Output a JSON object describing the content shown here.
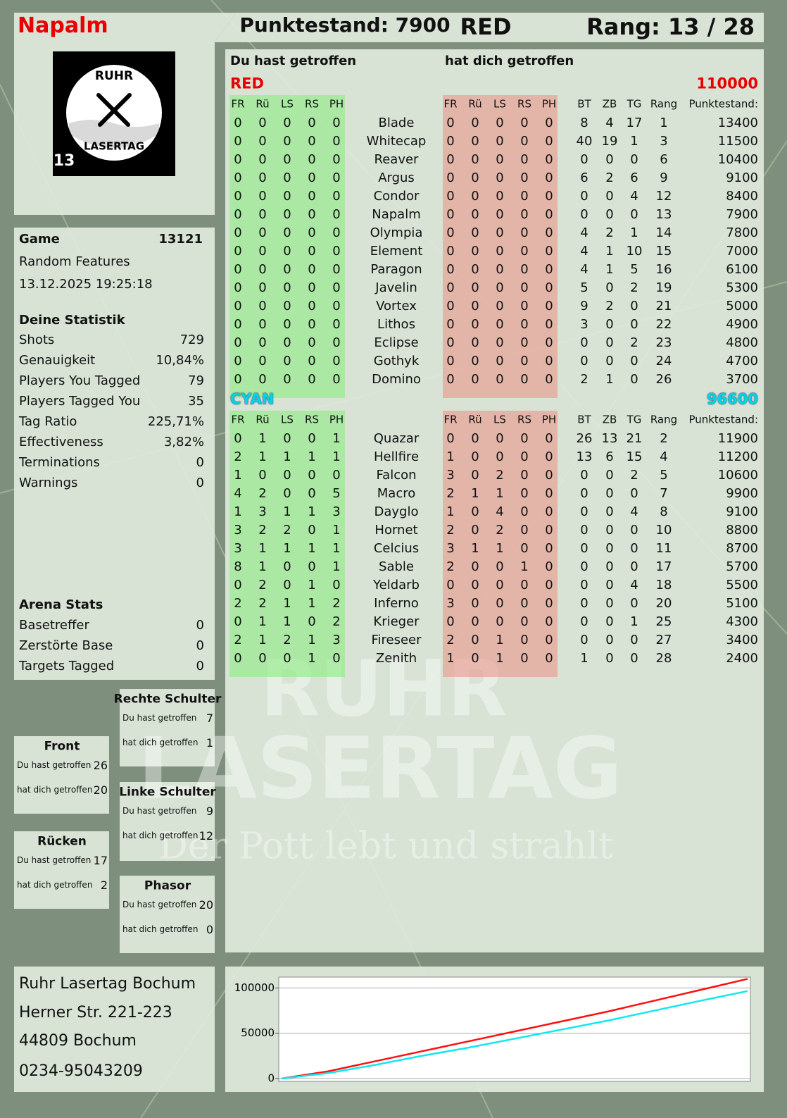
{
  "header": {
    "player": "Napalm",
    "score": "Punktestand: 7900",
    "team": "RED",
    "rank": "Rang: 13 / 28"
  },
  "logo": {
    "top": "RUHR",
    "bottom": "LASERTAG",
    "number": "13"
  },
  "game": {
    "label": "Game",
    "id": 13121,
    "mode": "Random Features",
    "date": "13.12.2025 19:25:18"
  },
  "statistics": {
    "title": "Deine Statistik",
    "rows": [
      [
        "Shots",
        729
      ],
      [
        "Genauigkeit",
        "10,84%"
      ],
      [
        "Players You Tagged",
        79
      ],
      [
        "Players Tagged You",
        35
      ],
      [
        "Tag Ratio",
        "225,71%"
      ],
      [
        "Effectiveness",
        "3,82%"
      ],
      [
        "Terminations",
        0
      ],
      [
        "Warnings",
        0
      ]
    ]
  },
  "arena": {
    "title": "Arena Stats",
    "rows": [
      [
        "Basetreffer",
        0
      ],
      [
        "Zerstörte Base",
        0
      ],
      [
        "Targets Tagged",
        0
      ]
    ]
  },
  "hit_zones": [
    {
      "name": "Rechte Schulter",
      "rows": [
        [
          "Du hast getroffen",
          7
        ],
        [
          "hat dich getroffen",
          1
        ]
      ]
    },
    {
      "name": "Front",
      "rows": [
        [
          "Du hast getroffen",
          26
        ],
        [
          "hat dich getroffen",
          20
        ]
      ]
    },
    {
      "name": "Linke Schulter",
      "rows": [
        [
          "Du hast getroffen",
          9
        ],
        [
          "hat dich getroffen",
          12
        ]
      ]
    },
    {
      "name": "Rücken",
      "rows": [
        [
          "Du hast getroffen",
          17
        ],
        [
          "hat dich getroffen",
          2
        ]
      ]
    },
    {
      "name": "Phasor",
      "rows": [
        [
          "Du hast getroffen",
          20
        ],
        [
          "hat dich getroffen",
          0
        ]
      ]
    }
  ],
  "address": [
    "Ruhr Lasertag Bochum",
    "Herner Str. 221-223",
    "44809 Bochum",
    "0234-95043209"
  ],
  "watermark": {
    "line1": "RUHR",
    "line2": "LASERTAG",
    "slogan": "Der Pott lebt und strahlt"
  },
  "table": {
    "given_title": "Du hast getroffen",
    "received_title": "hat dich getroffen",
    "hit_columns": [
      "FR",
      "Rü",
      "LS",
      "RS",
      "PH"
    ],
    "stat_columns": [
      "BT",
      "ZB",
      "TG",
      "Rang",
      "Punktestand:"
    ],
    "teams": [
      {
        "name": "RED",
        "color": "#e80000",
        "score": 110000,
        "rows": [
          {
            "name": "Blade",
            "given": [
              0,
              0,
              0,
              0,
              0
            ],
            "received": [
              0,
              0,
              0,
              0,
              0
            ],
            "stats": [
              8,
              4,
              17,
              1,
              13400
            ]
          },
          {
            "name": "Whitecap",
            "given": [
              0,
              0,
              0,
              0,
              0
            ],
            "received": [
              0,
              0,
              0,
              0,
              0
            ],
            "stats": [
              40,
              19,
              1,
              3,
              11500
            ]
          },
          {
            "name": "Reaver",
            "given": [
              0,
              0,
              0,
              0,
              0
            ],
            "received": [
              0,
              0,
              0,
              0,
              0
            ],
            "stats": [
              0,
              0,
              0,
              6,
              10400
            ]
          },
          {
            "name": "Argus",
            "given": [
              0,
              0,
              0,
              0,
              0
            ],
            "received": [
              0,
              0,
              0,
              0,
              0
            ],
            "stats": [
              6,
              2,
              6,
              9,
              9100
            ]
          },
          {
            "name": "Condor",
            "given": [
              0,
              0,
              0,
              0,
              0
            ],
            "received": [
              0,
              0,
              0,
              0,
              0
            ],
            "stats": [
              0,
              0,
              4,
              12,
              8400
            ]
          },
          {
            "name": "Napalm",
            "given": [
              0,
              0,
              0,
              0,
              0
            ],
            "received": [
              0,
              0,
              0,
              0,
              0
            ],
            "stats": [
              0,
              0,
              0,
              13,
              7900
            ]
          },
          {
            "name": "Olympia",
            "given": [
              0,
              0,
              0,
              0,
              0
            ],
            "received": [
              0,
              0,
              0,
              0,
              0
            ],
            "stats": [
              4,
              2,
              1,
              14,
              7800
            ]
          },
          {
            "name": "Element",
            "given": [
              0,
              0,
              0,
              0,
              0
            ],
            "received": [
              0,
              0,
              0,
              0,
              0
            ],
            "stats": [
              4,
              1,
              10,
              15,
              7000
            ]
          },
          {
            "name": "Paragon",
            "given": [
              0,
              0,
              0,
              0,
              0
            ],
            "received": [
              0,
              0,
              0,
              0,
              0
            ],
            "stats": [
              4,
              1,
              5,
              16,
              6100
            ]
          },
          {
            "name": "Javelin",
            "given": [
              0,
              0,
              0,
              0,
              0
            ],
            "received": [
              0,
              0,
              0,
              0,
              0
            ],
            "stats": [
              5,
              0,
              2,
              19,
              5300
            ]
          },
          {
            "name": "Vortex",
            "given": [
              0,
              0,
              0,
              0,
              0
            ],
            "received": [
              0,
              0,
              0,
              0,
              0
            ],
            "stats": [
              9,
              2,
              0,
              21,
              5000
            ]
          },
          {
            "name": "Lithos",
            "given": [
              0,
              0,
              0,
              0,
              0
            ],
            "received": [
              0,
              0,
              0,
              0,
              0
            ],
            "stats": [
              3,
              0,
              0,
              22,
              4900
            ]
          },
          {
            "name": "Eclipse",
            "given": [
              0,
              0,
              0,
              0,
              0
            ],
            "received": [
              0,
              0,
              0,
              0,
              0
            ],
            "stats": [
              0,
              0,
              2,
              23,
              4800
            ]
          },
          {
            "name": "Gothyk",
            "given": [
              0,
              0,
              0,
              0,
              0
            ],
            "received": [
              0,
              0,
              0,
              0,
              0
            ],
            "stats": [
              0,
              0,
              0,
              24,
              4700
            ]
          },
          {
            "name": "Domino",
            "given": [
              0,
              0,
              0,
              0,
              0
            ],
            "received": [
              0,
              0,
              0,
              0,
              0
            ],
            "stats": [
              2,
              1,
              0,
              26,
              3700
            ]
          }
        ]
      },
      {
        "name": "CYAN",
        "color": "#00d4e6",
        "score": 96600,
        "rows": [
          {
            "name": "Quazar",
            "given": [
              0,
              1,
              0,
              0,
              1
            ],
            "received": [
              0,
              0,
              0,
              0,
              0
            ],
            "stats": [
              26,
              13,
              21,
              2,
              11900
            ]
          },
          {
            "name": "Hellfire",
            "given": [
              2,
              1,
              1,
              1,
              1
            ],
            "received": [
              1,
              0,
              0,
              0,
              0
            ],
            "stats": [
              13,
              6,
              15,
              4,
              11200
            ]
          },
          {
            "name": "Falcon",
            "given": [
              1,
              0,
              0,
              0,
              0
            ],
            "received": [
              3,
              0,
              2,
              0,
              0
            ],
            "stats": [
              0,
              0,
              2,
              5,
              10600
            ]
          },
          {
            "name": "Macro",
            "given": [
              4,
              2,
              0,
              0,
              5
            ],
            "received": [
              2,
              1,
              1,
              0,
              0
            ],
            "stats": [
              0,
              0,
              0,
              7,
              9900
            ]
          },
          {
            "name": "Dayglo",
            "given": [
              1,
              3,
              1,
              1,
              3
            ],
            "received": [
              1,
              0,
              4,
              0,
              0
            ],
            "stats": [
              0,
              0,
              4,
              8,
              9100
            ]
          },
          {
            "name": "Hornet",
            "given": [
              3,
              2,
              2,
              0,
              1
            ],
            "received": [
              2,
              0,
              2,
              0,
              0
            ],
            "stats": [
              0,
              0,
              0,
              10,
              8800
            ]
          },
          {
            "name": "Celcius",
            "given": [
              3,
              1,
              1,
              1,
              1
            ],
            "received": [
              3,
              1,
              1,
              0,
              0
            ],
            "stats": [
              0,
              0,
              0,
              11,
              8700
            ]
          },
          {
            "name": "Sable",
            "given": [
              8,
              1,
              0,
              0,
              1
            ],
            "received": [
              2,
              0,
              0,
              1,
              0
            ],
            "stats": [
              0,
              0,
              0,
              17,
              5700
            ]
          },
          {
            "name": "Yeldarb",
            "given": [
              0,
              2,
              0,
              1,
              0
            ],
            "received": [
              0,
              0,
              0,
              0,
              0
            ],
            "stats": [
              0,
              0,
              4,
              18,
              5500
            ]
          },
          {
            "name": "Inferno",
            "given": [
              2,
              2,
              1,
              1,
              2
            ],
            "received": [
              3,
              0,
              0,
              0,
              0
            ],
            "stats": [
              0,
              0,
              0,
              20,
              5100
            ]
          },
          {
            "name": "Krieger",
            "given": [
              0,
              1,
              1,
              0,
              2
            ],
            "received": [
              0,
              0,
              0,
              0,
              0
            ],
            "stats": [
              0,
              0,
              1,
              25,
              4300
            ]
          },
          {
            "name": "Fireseer",
            "given": [
              2,
              1,
              2,
              1,
              3
            ],
            "received": [
              2,
              0,
              1,
              0,
              0
            ],
            "stats": [
              0,
              0,
              0,
              27,
              3400
            ]
          },
          {
            "name": "Zenith",
            "given": [
              0,
              0,
              0,
              1,
              0
            ],
            "received": [
              1,
              0,
              1,
              0,
              0
            ],
            "stats": [
              1,
              0,
              0,
              28,
              2400
            ]
          }
        ]
      }
    ]
  },
  "chart_data": {
    "type": "line",
    "categories": [
      null,
      null,
      null,
      null,
      null,
      null,
      null,
      null,
      null,
      null,
      null
    ],
    "series": [
      {
        "name": "RED",
        "color": "#ff1010",
        "values": [
          0,
          8000,
          19000,
          30000,
          41000,
          52000,
          63000,
          74000,
          86000,
          98000,
          110000
        ]
      },
      {
        "name": "CYAN",
        "color": "#10e8f0",
        "values": [
          0,
          6000,
          15000,
          25000,
          34000,
          44000,
          54000,
          64000,
          75000,
          86000,
          96600
        ]
      }
    ],
    "ylim": [
      0,
      112000
    ],
    "yticks": [
      0,
      50000,
      100000
    ],
    "grid": true
  }
}
